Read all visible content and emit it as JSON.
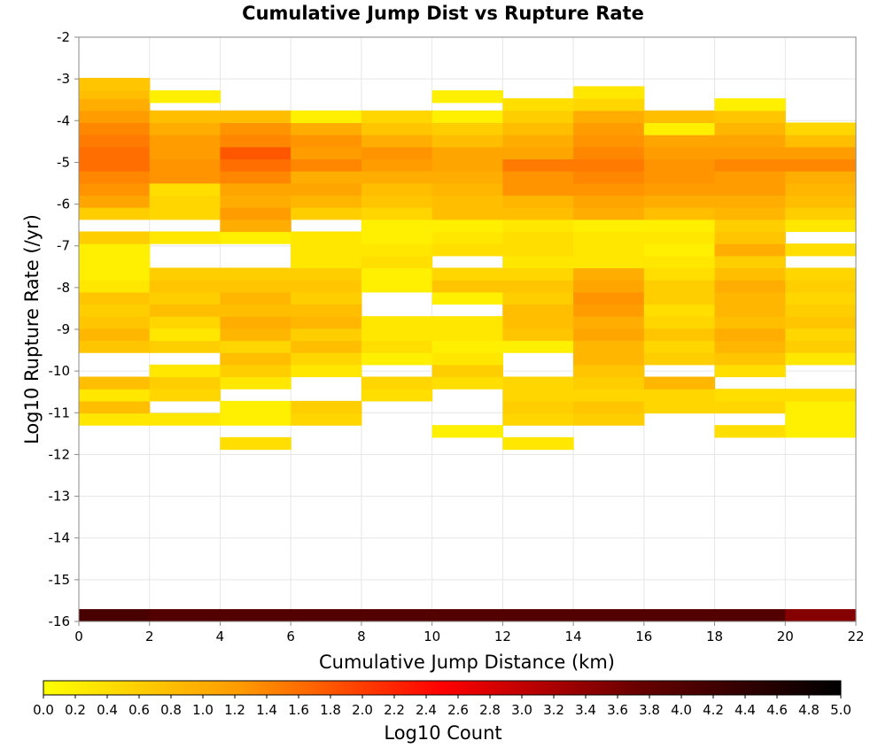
{
  "chart_data": {
    "type": "heatmap",
    "title": "Cumulative Jump Dist vs Rupture Rate",
    "xlabel": "Cumulative Jump Distance (km)",
    "ylabel": "Log10 Rupture Rate (/yr)",
    "xlim": [
      0,
      22
    ],
    "ylim": [
      -16,
      -2
    ],
    "x_bin_width": 2,
    "y_bin_width": 0.29,
    "x_ticks": [
      "0",
      "2",
      "4",
      "6",
      "8",
      "10",
      "12",
      "14",
      "16",
      "18",
      "20",
      "22"
    ],
    "y_ticks": [
      "-2",
      "-3",
      "-4",
      "-5",
      "-6",
      "-7",
      "-8",
      "-9",
      "-10",
      "-11",
      "-12",
      "-13",
      "-14",
      "-15",
      "-16"
    ],
    "grid": true,
    "colorbar": {
      "label": "Log10 Count",
      "range": [
        0,
        5
      ],
      "ticks": [
        "0.0",
        "0.2",
        "0.4",
        "0.6",
        "0.8",
        "1.0",
        "1.2",
        "1.4",
        "1.6",
        "1.8",
        "2.0",
        "2.2",
        "2.4",
        "2.6",
        "2.8",
        "3.0",
        "3.2",
        "3.4",
        "3.6",
        "3.8",
        "4.0",
        "4.2",
        "4.4",
        "4.6",
        "4.8",
        "5.0"
      ],
      "colors": [
        "#ffff00",
        "#ff9900",
        "#ff0000",
        "#660000",
        "#000000"
      ]
    },
    "series": [
      {
        "x": 1,
        "y": [
          -15.85,
          -11.15,
          -10.86,
          -10.57,
          -10.28,
          -9.41,
          -9.12,
          -8.83,
          -8.54,
          -8.25,
          -7.96,
          -7.67,
          -7.38,
          -7.09,
          -6.8,
          -6.22,
          -5.93,
          -5.64,
          -5.35,
          -5.06,
          -4.77,
          -4.48,
          -4.19,
          -3.9,
          -3.61,
          -3.32,
          -3.12
        ],
        "v": [
          4.1,
          0.3,
          0.8,
          0.3,
          0.8,
          0.7,
          0.9,
          0.7,
          0.6,
          0.7,
          0.3,
          0.2,
          0.2,
          0.2,
          0.6,
          0.6,
          1.1,
          1.3,
          1.4,
          1.6,
          1.6,
          1.5,
          1.4,
          1.2,
          1.0,
          0.8,
          0.7
        ]
      },
      {
        "x": 3,
        "y": [
          -15.85,
          -11.15,
          -10.57,
          -10.28,
          -9.99,
          -9.41,
          -9.12,
          -8.83,
          -8.54,
          -8.25,
          -7.96,
          -7.67,
          -6.8,
          -6.22,
          -5.93,
          -5.64,
          -5.35,
          -5.06,
          -4.77,
          -4.48,
          -4.19,
          -3.9,
          -3.42
        ],
        "v": [
          4.0,
          0.3,
          0.5,
          0.6,
          0.3,
          0.6,
          0.3,
          0.5,
          0.8,
          0.6,
          0.7,
          0.6,
          0.3,
          0.5,
          0.5,
          0.4,
          1.3,
          1.3,
          1.2,
          1.2,
          1.0,
          0.8,
          0.2
        ]
      },
      {
        "x": 5,
        "y": [
          -15.85,
          -11.73,
          -11.15,
          -10.86,
          -10.28,
          -9.99,
          -9.7,
          -9.41,
          -9.12,
          -8.83,
          -8.54,
          -8.25,
          -7.96,
          -7.67,
          -6.8,
          -6.51,
          -6.22,
          -5.93,
          -5.64,
          -5.35,
          -5.06,
          -4.77,
          -4.48,
          -4.19,
          -3.9
        ],
        "v": [
          4.0,
          0.4,
          0.2,
          0.2,
          0.3,
          0.6,
          0.8,
          0.5,
          0.9,
          1.0,
          0.8,
          0.9,
          0.7,
          0.6,
          0.2,
          1.0,
          1.2,
          1.0,
          1.1,
          1.4,
          1.6,
          1.8,
          1.4,
          1.3,
          0.8
        ]
      },
      {
        "x": 7,
        "y": [
          -15.85,
          -11.15,
          -10.86,
          -9.99,
          -9.7,
          -9.41,
          -9.12,
          -8.83,
          -8.54,
          -8.25,
          -7.96,
          -7.67,
          -7.38,
          -7.09,
          -6.8,
          -6.22,
          -5.93,
          -5.64,
          -5.35,
          -5.06,
          -4.77,
          -4.48,
          -4.19,
          -3.9
        ],
        "v": [
          4.0,
          0.5,
          0.6,
          0.3,
          0.5,
          0.8,
          0.6,
          0.9,
          0.8,
          0.6,
          0.7,
          0.6,
          0.3,
          0.3,
          0.3,
          0.6,
          0.9,
          1.1,
          1.0,
          1.4,
          1.2,
          1.3,
          1.0,
          0.2
        ]
      },
      {
        "x": 9,
        "y": [
          -15.85,
          -10.57,
          -10.28,
          -9.7,
          -9.41,
          -9.12,
          -8.83,
          -7.96,
          -7.67,
          -7.38,
          -7.09,
          -6.8,
          -6.51,
          -6.22,
          -5.93,
          -5.64,
          -5.35,
          -5.06,
          -4.77,
          -4.48,
          -4.19,
          -3.9
        ],
        "v": [
          4.0,
          0.4,
          0.5,
          0.2,
          0.4,
          0.3,
          0.3,
          0.2,
          0.2,
          0.4,
          0.3,
          0.2,
          0.2,
          0.5,
          0.7,
          0.8,
          1.0,
          1.2,
          1.3,
          1.0,
          0.7,
          0.5
        ]
      },
      {
        "x": 11,
        "y": [
          -15.85,
          -11.44,
          -10.28,
          -9.99,
          -9.7,
          -9.41,
          -9.12,
          -8.83,
          -8.25,
          -7.96,
          -7.67,
          -7.09,
          -6.8,
          -6.51,
          -6.22,
          -5.93,
          -5.64,
          -5.35,
          -5.06,
          -4.77,
          -4.48,
          -4.19,
          -3.9,
          -3.42
        ],
        "v": [
          4.0,
          0.2,
          0.4,
          0.6,
          0.3,
          0.2,
          0.3,
          0.3,
          0.2,
          0.7,
          0.5,
          0.4,
          0.3,
          0.2,
          0.8,
          0.8,
          0.9,
          1.0,
          1.1,
          1.1,
          0.8,
          0.6,
          0.2,
          0.2
        ]
      },
      {
        "x": 13,
        "y": [
          -15.85,
          -11.73,
          -11.15,
          -10.86,
          -10.57,
          -10.28,
          -9.41,
          -9.12,
          -8.83,
          -8.54,
          -8.25,
          -7.96,
          -7.67,
          -7.38,
          -7.09,
          -6.8,
          -6.51,
          -6.22,
          -5.93,
          -5.64,
          -5.35,
          -5.06,
          -4.77,
          -4.48,
          -4.19,
          -3.9,
          -3.61
        ],
        "v": [
          4.0,
          0.3,
          0.5,
          0.6,
          0.5,
          0.5,
          0.2,
          0.7,
          0.8,
          0.8,
          0.6,
          0.7,
          0.5,
          0.3,
          0.4,
          0.4,
          0.3,
          0.8,
          0.9,
          1.3,
          1.3,
          1.5,
          1.1,
          1.0,
          0.8,
          0.6,
          0.4
        ]
      },
      {
        "x": 15,
        "y": [
          -15.85,
          -11.15,
          -10.86,
          -10.57,
          -10.28,
          -9.99,
          -9.7,
          -9.41,
          -9.12,
          -8.83,
          -8.54,
          -8.25,
          -7.96,
          -7.67,
          -7.38,
          -7.09,
          -6.8,
          -6.51,
          -6.22,
          -5.93,
          -5.64,
          -5.35,
          -5.06,
          -4.77,
          -4.48,
          -4.19,
          -3.9,
          -3.61,
          -3.32
        ],
        "v": [
          4.0,
          0.6,
          0.7,
          0.5,
          0.6,
          0.7,
          0.9,
          0.9,
          1.1,
          1.0,
          1.2,
          1.3,
          1.1,
          1.0,
          0.3,
          0.3,
          0.3,
          0.2,
          1.0,
          1.1,
          1.3,
          1.4,
          1.5,
          1.4,
          1.3,
          1.2,
          1.0,
          0.5,
          0.3
        ]
      },
      {
        "x": 17,
        "y": [
          -15.85,
          -10.86,
          -10.57,
          -10.28,
          -9.7,
          -9.41,
          -9.12,
          -8.83,
          -8.54,
          -8.25,
          -7.96,
          -7.67,
          -7.38,
          -7.09,
          -6.8,
          -6.51,
          -6.22,
          -5.93,
          -5.64,
          -5.35,
          -5.06,
          -4.77,
          -4.48,
          -4.19,
          -3.9
        ],
        "v": [
          4.0,
          0.5,
          0.5,
          0.9,
          0.6,
          0.5,
          0.7,
          0.5,
          0.4,
          0.6,
          0.6,
          0.4,
          0.3,
          0.2,
          0.3,
          0.2,
          0.8,
          1.0,
          1.2,
          1.3,
          1.3,
          1.2,
          1.1,
          0.2,
          0.8
        ]
      },
      {
        "x": 19,
        "y": [
          -15.85,
          -11.44,
          -10.86,
          -10.57,
          -9.99,
          -9.7,
          -9.41,
          -9.12,
          -8.83,
          -8.54,
          -8.25,
          -7.96,
          -7.67,
          -7.38,
          -7.09,
          -6.8,
          -6.51,
          -6.22,
          -5.93,
          -5.64,
          -5.35,
          -5.06,
          -4.77,
          -4.48,
          -4.19,
          -3.9,
          -3.61
        ],
        "v": [
          4.0,
          0.4,
          0.5,
          0.4,
          0.4,
          0.7,
          0.9,
          1.0,
          0.8,
          0.9,
          0.9,
          1.0,
          0.8,
          0.6,
          1.0,
          0.7,
          0.6,
          0.9,
          1.0,
          1.2,
          1.2,
          1.4,
          1.2,
          1.1,
          0.9,
          0.7,
          0.2
        ]
      },
      {
        "x": 21,
        "y": [
          -15.85,
          -11.44,
          -11.15,
          -10.86,
          -10.57,
          -9.7,
          -9.41,
          -9.12,
          -8.83,
          -8.54,
          -8.25,
          -7.96,
          -7.67,
          -7.09,
          -6.51,
          -6.22,
          -5.93,
          -5.64,
          -5.35,
          -5.06,
          -4.77,
          -4.48,
          -4.19
        ],
        "v": [
          3.5,
          0.2,
          0.2,
          0.2,
          0.4,
          0.3,
          0.6,
          0.5,
          0.7,
          0.6,
          0.5,
          0.6,
          0.5,
          0.4,
          0.3,
          0.6,
          0.8,
          0.9,
          1.0,
          1.4,
          1.2,
          0.8,
          0.5
        ]
      }
    ]
  }
}
